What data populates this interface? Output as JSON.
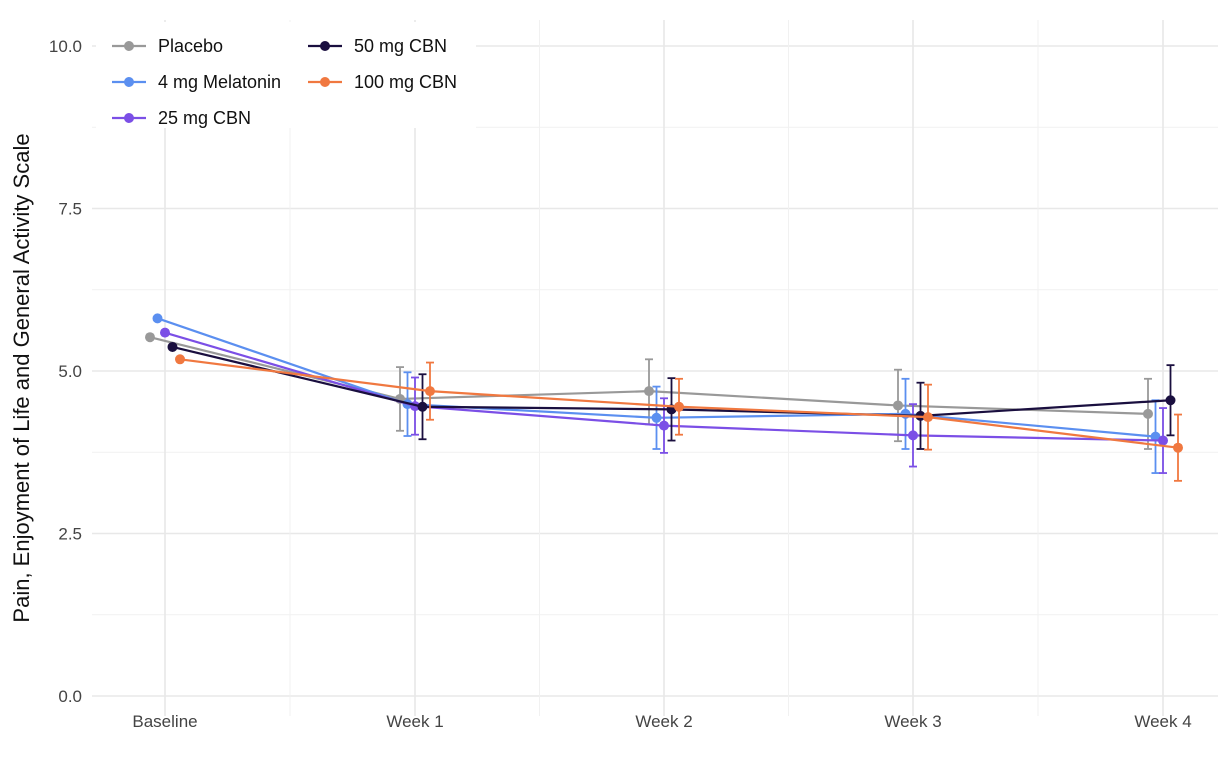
{
  "chart_data": {
    "type": "line",
    "ylabel": "Pain, Enjoyment of Life and General Activity Scale",
    "xlabel": "",
    "categories": [
      "Baseline",
      "Week 1",
      "Week 2",
      "Week 3",
      "Week 4"
    ],
    "ylim": [
      0,
      10.3
    ],
    "yticks": [
      "0.0",
      "2.5",
      "5.0",
      "7.5",
      "10.0"
    ],
    "ytick_values": [
      0,
      2.5,
      5,
      7.5,
      10
    ],
    "grid": true,
    "error_bars": true,
    "legend": "top-left",
    "series": [
      {
        "name": "Placebo",
        "color": "#999999",
        "values": [
          5.52,
          4.57,
          4.69,
          4.47,
          4.34
        ],
        "ci_low": [
          null,
          4.08,
          4.18,
          3.92,
          3.8
        ],
        "ci_high": [
          null,
          5.06,
          5.18,
          5.02,
          4.88
        ]
      },
      {
        "name": "4 mg Melatonin",
        "color": "#5b8ff0",
        "values": [
          5.81,
          4.49,
          4.28,
          4.34,
          3.99
        ],
        "ci_low": [
          null,
          4.0,
          3.8,
          3.8,
          3.43
        ],
        "ci_high": [
          null,
          4.98,
          4.76,
          4.88,
          4.55
        ]
      },
      {
        "name": "25 mg CBN",
        "color": "#7b4fe6",
        "values": [
          5.59,
          4.46,
          4.16,
          4.01,
          3.93
        ],
        "ci_low": [
          null,
          4.02,
          3.74,
          3.53,
          3.43
        ],
        "ci_high": [
          null,
          4.9,
          4.58,
          4.49,
          4.43
        ]
      },
      {
        "name": "50 mg CBN",
        "color": "#1a0f3f",
        "values": [
          5.37,
          4.45,
          4.41,
          4.31,
          4.55
        ],
        "ci_low": [
          null,
          3.95,
          3.93,
          3.8,
          4.01
        ],
        "ci_high": [
          null,
          4.95,
          4.89,
          4.82,
          5.09
        ]
      },
      {
        "name": "100 mg CBN",
        "color": "#f07840",
        "values": [
          5.18,
          4.69,
          4.45,
          4.29,
          3.82
        ],
        "ci_low": [
          null,
          4.25,
          4.02,
          3.79,
          3.31
        ],
        "ci_high": [
          null,
          5.13,
          4.88,
          4.79,
          4.33
        ]
      }
    ]
  }
}
